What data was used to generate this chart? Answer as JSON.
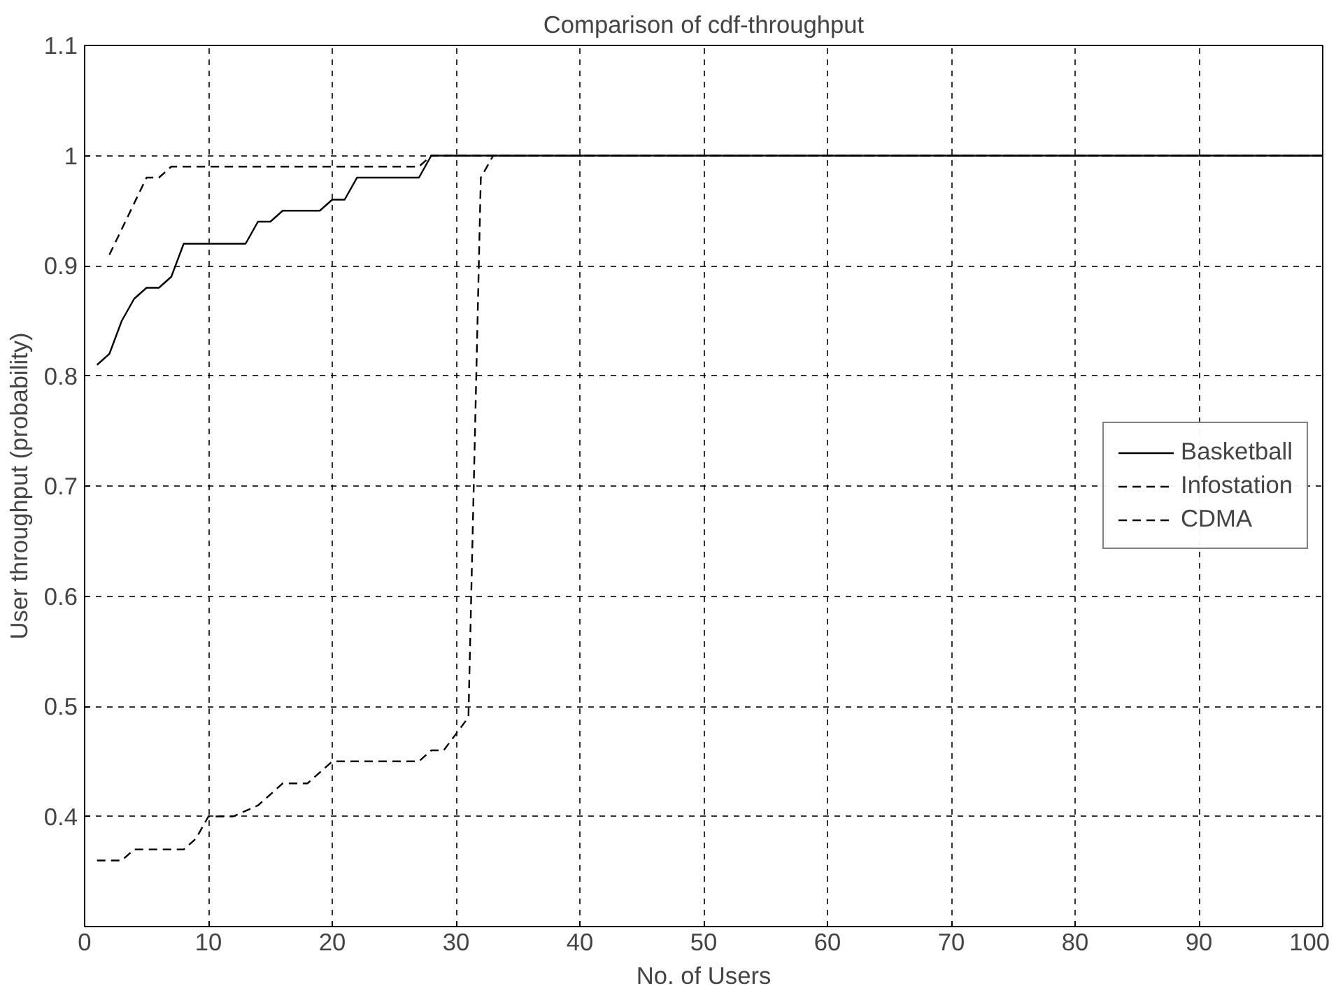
{
  "chart_data": {
    "type": "line",
    "title": "Comparison of cdf-throughput",
    "xlabel": "No. of Users",
    "ylabel": "User throughput (probability)",
    "xlim": [
      0,
      100
    ],
    "xticks": [
      0,
      10,
      20,
      30,
      40,
      50,
      60,
      70,
      80,
      90,
      100
    ],
    "ylim": [
      0.3,
      1.1
    ],
    "yticks": [
      0.4,
      0.5,
      0.6,
      0.7,
      0.8,
      0.9,
      1,
      1.1
    ],
    "grid": true,
    "legend": "right",
    "marker": "none",
    "series": [
      {
        "name": "Basketball",
        "color": "#000000",
        "line_style": "solid",
        "x": [
          1,
          2,
          3,
          4,
          5,
          6,
          7,
          8,
          13,
          14,
          15,
          16,
          19,
          20,
          21,
          22,
          27,
          28,
          100
        ],
        "values": [
          0.81,
          0.82,
          0.85,
          0.87,
          0.88,
          0.88,
          0.89,
          0.92,
          0.92,
          0.94,
          0.94,
          0.95,
          0.95,
          0.96,
          0.96,
          0.98,
          0.98,
          1.0,
          1.0
        ]
      },
      {
        "name": "Infostation",
        "color": "#000000",
        "line_style": "dashed",
        "x": [
          2,
          5,
          6,
          7,
          27,
          28,
          100
        ],
        "values": [
          0.91,
          0.98,
          0.98,
          0.99,
          0.99,
          1.0,
          1.0
        ]
      },
      {
        "name": "CDMA",
        "color": "#000000",
        "line_style": "dashed",
        "x": [
          1,
          3,
          4,
          6,
          8,
          9,
          10,
          12,
          14,
          16,
          18,
          20,
          25,
          27,
          28,
          29,
          31,
          32,
          33,
          100
        ],
        "values": [
          0.36,
          0.36,
          0.37,
          0.37,
          0.37,
          0.38,
          0.4,
          0.4,
          0.41,
          0.43,
          0.43,
          0.45,
          0.45,
          0.45,
          0.46,
          0.46,
          0.49,
          0.98,
          1.0,
          1.0
        ]
      }
    ]
  }
}
